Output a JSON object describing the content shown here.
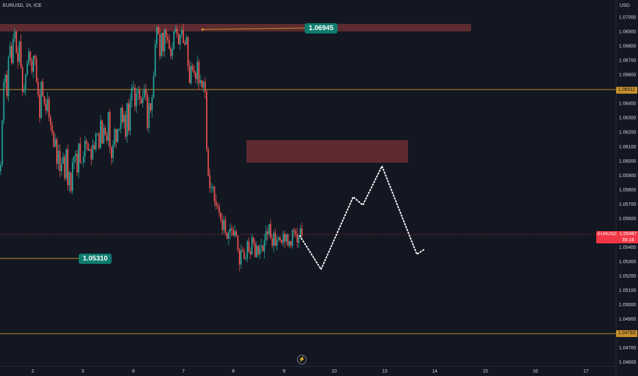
{
  "header": {
    "symbol": "EURUSD, 1h, ICE",
    "currency": "USD"
  },
  "colors": {
    "background": "#131722",
    "up": "#26a69a",
    "down": "#ef5350",
    "zone": "#5d2a30",
    "level_line": "#c8902a",
    "badge": "#0e7c6e",
    "last_price": "#f23645"
  },
  "annotations": {
    "top_badge": "1.06945",
    "bottom_badge": "1.05310"
  },
  "axis_tags": {
    "level_upper": "1.06511",
    "level_lower": "1.04783",
    "last_price": "1.05487",
    "last_countdown": "35:16",
    "last_symbol": "EURUSD"
  },
  "icons": {
    "replay": "bolt-icon"
  },
  "chart_data": {
    "type": "candlestick",
    "symbol": "EURUSD",
    "interval": "1h",
    "source": "ICE",
    "price_ticks": [
      "1.07000",
      "1.06900",
      "1.06800",
      "1.06700",
      "1.06600",
      "1.06400",
      "1.06300",
      "1.06200",
      "1.06100",
      "1.06000",
      "1.05900",
      "1.05800",
      "1.05700",
      "1.05600",
      "1.05400",
      "1.05300",
      "1.05200",
      "1.05100",
      "1.05000",
      "1.04900",
      "1.04700",
      "1.04600"
    ],
    "time_ticks": [
      "2",
      "3",
      "6",
      "7",
      "8",
      "9",
      "10",
      "13",
      "14",
      "15",
      "16",
      "17"
    ],
    "ylim": [
      1.0457,
      1.071
    ],
    "horizontal_levels": [
      1.06511,
      1.04783,
      1.05487
    ],
    "supply_zones": [
      {
        "from": 1.06945,
        "to": 1.07005
      },
      {
        "from": 1.06002,
        "to": 1.06155
      }
    ],
    "projection_path": [
      [
        1.0547,
        1.0525,
        1.0575,
        1.0568,
        1.0597,
        1.0534,
        1.0537
      ]
    ],
    "candles": {
      "close": [
        1.0597,
        1.0628,
        1.0655,
        1.066,
        1.0645,
        1.0672,
        1.068,
        1.0668,
        1.0685,
        1.069,
        1.0675,
        1.0669,
        1.0683,
        1.0665,
        1.0648,
        1.065,
        1.066,
        1.0668,
        1.0676,
        1.067,
        1.0662,
        1.0673,
        1.0671,
        1.0655,
        1.0646,
        1.063,
        1.0655,
        1.0645,
        1.064,
        1.0635,
        1.0643,
        1.063,
        1.0625,
        1.062,
        1.061,
        1.0615,
        1.0598,
        1.0607,
        1.0593,
        1.0598,
        1.0603,
        1.0588,
        1.0608,
        1.0583,
        1.0592,
        1.0579,
        1.0599,
        1.0603,
        1.0605,
        1.0592,
        1.0612,
        1.0599,
        1.0599,
        1.0603,
        1.0614,
        1.0612,
        1.0607,
        1.0608,
        1.0601,
        1.0611,
        1.0608,
        1.0619,
        1.0619,
        1.0609,
        1.0628,
        1.0612,
        1.0623,
        1.0618,
        1.0614,
        1.0634,
        1.0609,
        1.0602,
        1.0611,
        1.0622,
        1.0613,
        1.0622,
        1.0622,
        1.0637,
        1.0627,
        1.0632,
        1.0617,
        1.064,
        1.0621,
        1.0642,
        1.0651,
        1.0651,
        1.0638,
        1.0647,
        1.0649,
        1.0643,
        1.064,
        1.0644,
        1.065,
        1.0646,
        1.0623,
        1.064,
        1.0635,
        1.0644,
        1.0659,
        1.0681,
        1.0693,
        1.0688,
        1.0673,
        1.0689,
        1.0676,
        1.0691,
        1.0686,
        1.0684,
        1.0678,
        1.0673,
        1.0678,
        1.069,
        1.0692,
        1.0688,
        1.0681,
        1.0688,
        1.0691,
        1.0682,
        1.0681,
        1.0686,
        1.0666,
        1.0654,
        1.0666,
        1.0663,
        1.0661,
        1.0657,
        1.0669,
        1.0654,
        1.0656,
        1.0651,
        1.0655,
        1.0648,
        1.0608,
        1.059,
        1.0581,
        1.0581,
        1.0582,
        1.0572,
        1.0569,
        1.0568,
        1.0564,
        1.0559,
        1.0552,
        1.0559,
        1.055,
        1.0546,
        1.055,
        1.0553,
        1.0552,
        1.0548,
        1.0551,
        1.0548,
        1.0538,
        1.0528,
        1.0538,
        1.0537,
        1.0532,
        1.0532,
        1.0544,
        1.0537,
        1.0535,
        1.0547,
        1.0543,
        1.0533,
        1.0541,
        1.0535,
        1.054,
        1.0541,
        1.0537,
        1.0545,
        1.0551,
        1.0549,
        1.0556,
        1.0546,
        1.0541,
        1.055,
        1.0541,
        1.0545,
        1.0547,
        1.0545,
        1.0543,
        1.0549,
        1.0544,
        1.0549,
        1.0541,
        1.0544,
        1.0541,
        1.0552,
        1.0551,
        1.0549,
        1.0543,
        1.0547,
        1.0553,
        1.0548
      ]
    }
  }
}
